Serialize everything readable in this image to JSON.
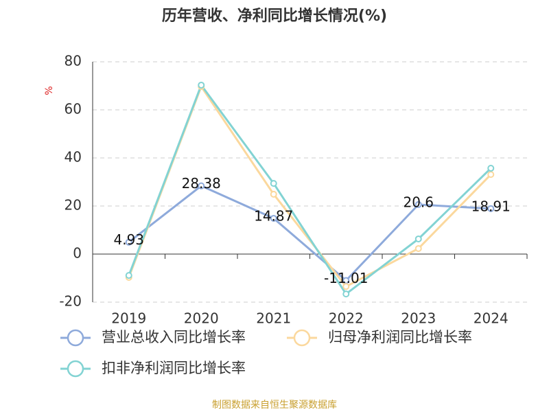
{
  "chart_data": {
    "type": "line",
    "title": "历年营收、净利同比增长情况(%)",
    "y_label": "%",
    "categories": [
      "2019",
      "2020",
      "2021",
      "2022",
      "2023",
      "2024"
    ],
    "series": [
      {
        "name": "营业总收入同比增长率",
        "color": "#8eaadb",
        "values": [
          4.93,
          28.38,
          14.87,
          -11.01,
          20.6,
          18.91
        ]
      },
      {
        "name": "归母净利润同比增长率",
        "color": "#fbd89d",
        "values": [
          -9.7,
          69.7,
          24.9,
          -13.5,
          2.3,
          33.1
        ]
      },
      {
        "name": "扣非净利润同比增长率",
        "color": "#82d3d3",
        "values": [
          -8.9,
          70.3,
          29.4,
          -16.6,
          6.3,
          35.7
        ]
      }
    ],
    "ylim": [
      -20,
      80
    ],
    "yticks": [
      -20,
      0,
      20,
      40,
      60,
      80
    ],
    "grid": true,
    "source": "制图数据来自恒生聚源数据库"
  }
}
